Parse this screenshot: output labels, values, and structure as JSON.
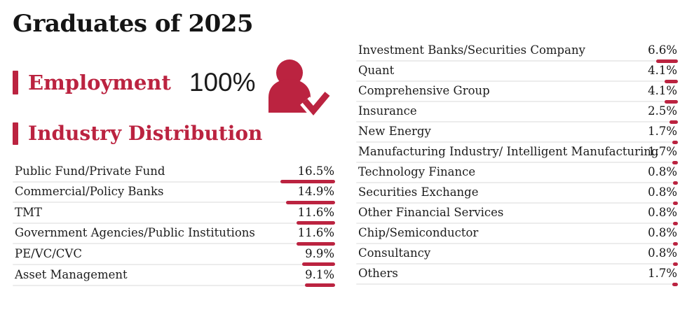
{
  "page": {
    "title": "Graduates of 2025"
  },
  "colors": {
    "accent": "#bb2340",
    "text": "#1b1b1b",
    "rule": "#ececec"
  },
  "employment": {
    "label": "Employment",
    "value": "100%"
  },
  "icons": {
    "person_check": "person-with-checkmark-icon"
  },
  "industry": {
    "heading": "Industry Distribution",
    "left": [
      {
        "label": "Public Fund/Private Fund",
        "pct": "16.5%",
        "value": 16.5
      },
      {
        "label": "Commercial/Policy Banks",
        "pct": "14.9%",
        "value": 14.9
      },
      {
        "label": "TMT",
        "pct": "11.6%",
        "value": 11.6
      },
      {
        "label": "Government Agencies/Public Institutions",
        "pct": "11.6%",
        "value": 11.6
      },
      {
        "label": "PE/VC/CVC",
        "pct": "9.9%",
        "value": 9.9
      },
      {
        "label": "Asset Management",
        "pct": "9.1%",
        "value": 9.1
      }
    ],
    "right": [
      {
        "label": "Investment Banks/Securities Company",
        "pct": "6.6%",
        "value": 6.6
      },
      {
        "label": "Quant",
        "pct": "4.1%",
        "value": 4.1
      },
      {
        "label": "Comprehensive Group",
        "pct": "4.1%",
        "value": 4.1
      },
      {
        "label": "Insurance",
        "pct": "2.5%",
        "value": 2.5
      },
      {
        "label": "New Energy",
        "pct": "1.7%",
        "value": 1.7
      },
      {
        "label": "Manufacturing Industry/ Intelligent Manufacturing",
        "pct": "1.7%",
        "value": 1.7
      },
      {
        "label": "Technology Finance",
        "pct": "0.8%",
        "value": 0.8
      },
      {
        "label": "Securities Exchange",
        "pct": "0.8%",
        "value": 0.8
      },
      {
        "label": "Other Financial Services",
        "pct": "0.8%",
        "value": 0.8
      },
      {
        "label": "Chip/Semiconductor",
        "pct": "0.8%",
        "value": 0.8
      },
      {
        "label": "Consultancy",
        "pct": "0.8%",
        "value": 0.8
      },
      {
        "label": "Others",
        "pct": "1.7%",
        "value": 1.7
      }
    ]
  },
  "chart_data": {
    "type": "bar",
    "title": "Industry Distribution",
    "subtitle": "Graduates of 2025 — Employment 100%",
    "unit": "%",
    "categories": [
      "Public Fund/Private Fund",
      "Commercial/Policy Banks",
      "TMT",
      "Government Agencies/Public Institutions",
      "PE/VC/CVC",
      "Asset Management",
      "Investment Banks/Securities Company",
      "Quant",
      "Comprehensive Group",
      "Insurance",
      "New Energy",
      "Manufacturing Industry/ Intelligent Manufacturing",
      "Technology Finance",
      "Securities Exchange",
      "Other Financial Services",
      "Chip/Semiconductor",
      "Consultancy",
      "Others"
    ],
    "values": [
      16.5,
      14.9,
      11.6,
      11.6,
      9.9,
      9.1,
      6.6,
      4.1,
      4.1,
      2.5,
      1.7,
      1.7,
      0.8,
      0.8,
      0.8,
      0.8,
      0.8,
      1.7
    ],
    "layout": "two-column label list, values right-aligned with proportional red underline bars",
    "employment_rate": 100
  }
}
